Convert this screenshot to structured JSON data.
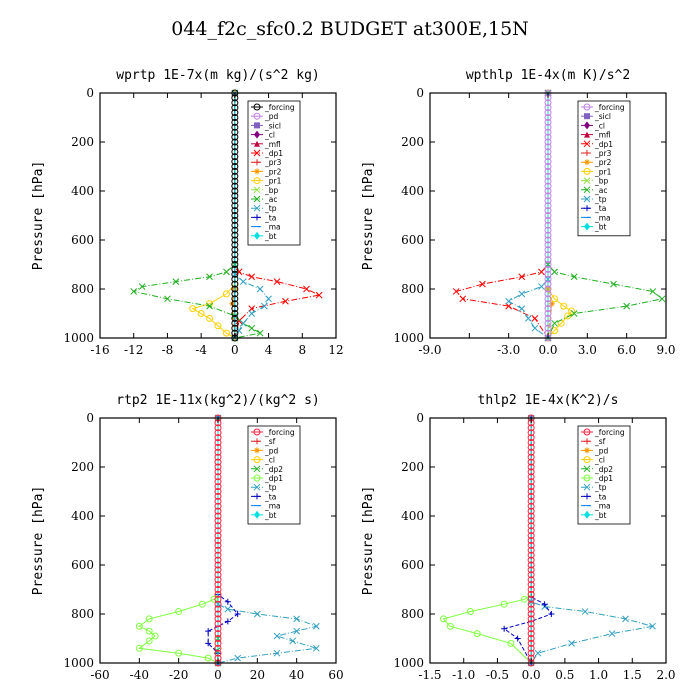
{
  "title": "044_f2c_sfc0.2  BUDGET at300E,15N",
  "chart_data": [
    {
      "type": "line",
      "title": "wprtp  1E-7x(m kg)/(s^2 kg)",
      "ylabel": "Pressure [hPa]",
      "xlim": [
        -16,
        12
      ],
      "xticks": [
        -16,
        -12,
        -8,
        -4,
        0,
        4,
        8,
        12
      ],
      "xtick_labels": [
        "-16",
        "-12",
        "-8",
        "-4",
        "0",
        "4",
        "8",
        "12"
      ],
      "ylim": [
        1000,
        0
      ],
      "yticks": [
        0,
        200,
        400,
        600,
        800,
        1000
      ],
      "ytick_labels": [
        "0",
        "200",
        "400",
        "600",
        "800",
        "1000"
      ],
      "legend_position": "top-right",
      "series": [
        {
          "name": "_forcing",
          "color": "#000000",
          "marker": "o",
          "x": [
            0,
            0
          ],
          "y": [
            0,
            1000
          ]
        },
        {
          "name": "_pd",
          "color": "#c080e0",
          "marker": "o",
          "x": [
            0,
            0
          ],
          "y": [
            0,
            1000
          ]
        },
        {
          "name": "_sicl",
          "color": "#8060c0",
          "marker": "s",
          "x": [
            0,
            0
          ],
          "y": [
            0,
            1000
          ]
        },
        {
          "name": "_cl",
          "color": "#800080",
          "marker": "d",
          "x": [
            0,
            0
          ],
          "y": [
            0,
            1000
          ]
        },
        {
          "name": "_mfl",
          "color": "#c00040",
          "marker": "^",
          "x": [
            0,
            0
          ],
          "y": [
            0,
            1000
          ]
        },
        {
          "name": "_dp1",
          "color": "#ff0000",
          "marker": "x",
          "x": [
            0,
            0,
            0.5,
            2,
            5,
            8.5,
            10,
            6,
            2,
            0.5,
            0
          ],
          "y": [
            0,
            700,
            730,
            750,
            770,
            800,
            825,
            850,
            880,
            930,
            1000
          ]
        },
        {
          "name": "_pr3",
          "color": "#e02020",
          "marker": "+",
          "x": [
            0,
            0
          ],
          "y": [
            0,
            1000
          ]
        },
        {
          "name": "_pr2",
          "color": "#ff9900",
          "marker": "*",
          "x": [
            0,
            0,
            -0.3,
            0
          ],
          "y": [
            0,
            800,
            860,
            1000
          ]
        },
        {
          "name": "_pr1",
          "color": "#ffd000",
          "marker": "o",
          "x": [
            0,
            0,
            -1,
            -3,
            -5,
            -4,
            -3,
            -2,
            -1,
            0
          ],
          "y": [
            0,
            780,
            820,
            860,
            880,
            900,
            920,
            950,
            980,
            1000
          ]
        },
        {
          "name": "_bp",
          "color": "#90e040",
          "marker": "x",
          "x": [
            0,
            0
          ],
          "y": [
            0,
            1000
          ]
        },
        {
          "name": "_ac",
          "color": "#20b020",
          "marker": "x",
          "x": [
            0,
            0,
            -1,
            -3,
            -7,
            -11,
            -12,
            -8,
            -3,
            0,
            1,
            2,
            3,
            0
          ],
          "y": [
            0,
            700,
            730,
            750,
            770,
            790,
            810,
            840,
            870,
            910,
            940,
            960,
            980,
            1000
          ]
        },
        {
          "name": "_tp",
          "color": "#30a0c0",
          "marker": "x",
          "x": [
            0,
            0,
            1,
            3,
            4,
            3.5,
            2,
            1,
            0.5,
            0
          ],
          "y": [
            0,
            740,
            770,
            800,
            840,
            870,
            900,
            940,
            970,
            1000
          ]
        },
        {
          "name": "_ta",
          "color": "#0000c0",
          "marker": "+",
          "x": [
            0,
            0
          ],
          "y": [
            0,
            1000
          ]
        },
        {
          "name": "_ma",
          "color": "#0080ff",
          "marker": "-",
          "x": [
            0,
            0
          ],
          "y": [
            0,
            1000
          ]
        },
        {
          "name": "_bt",
          "color": "#00e0e0",
          "marker": "D",
          "x": [
            0,
            0
          ],
          "y": [
            0,
            1000
          ]
        }
      ]
    },
    {
      "type": "line",
      "title": "wpthlp  1E-4x(m K)/s^2",
      "ylabel": "Pressure [hPa]",
      "xlim": [
        -9,
        9
      ],
      "xticks": [
        -9,
        -6,
        -3,
        0,
        3,
        6,
        9
      ],
      "xtick_labels": [
        "-9.0",
        "",
        "-3.0",
        "0.0",
        "3.0",
        "6.0",
        "9.0"
      ],
      "ylim": [
        1000,
        0
      ],
      "yticks": [
        0,
        200,
        400,
        600,
        800,
        1000
      ],
      "ytick_labels": [
        "0",
        "200",
        "400",
        "600",
        "800",
        "1000"
      ],
      "legend_position": "top-right",
      "series": [
        {
          "name": "_forcing",
          "color": "#c080e0",
          "marker": "o",
          "x": [
            0,
            0
          ],
          "y": [
            0,
            1000
          ]
        },
        {
          "name": "_sicl",
          "color": "#8060c0",
          "marker": "s",
          "x": [
            0,
            0
          ],
          "y": [
            0,
            1000
          ]
        },
        {
          "name": "_cl",
          "color": "#800080",
          "marker": "d",
          "x": [
            0,
            0
          ],
          "y": [
            0,
            1000
          ]
        },
        {
          "name": "_mfl",
          "color": "#c00040",
          "marker": "^",
          "x": [
            0,
            0
          ],
          "y": [
            0,
            1000
          ]
        },
        {
          "name": "_dp1",
          "color": "#ff0000",
          "marker": "x",
          "x": [
            0,
            0,
            -0.5,
            -2,
            -5,
            -7,
            -6.5,
            -3,
            -1,
            0
          ],
          "y": [
            0,
            700,
            730,
            750,
            780,
            810,
            840,
            870,
            920,
            1000
          ]
        },
        {
          "name": "_pr3",
          "color": "#e02020",
          "marker": "+",
          "x": [
            0,
            0
          ],
          "y": [
            0,
            1000
          ]
        },
        {
          "name": "_pr2",
          "color": "#ff9900",
          "marker": "*",
          "x": [
            0,
            0,
            0.3,
            0
          ],
          "y": [
            0,
            800,
            860,
            1000
          ]
        },
        {
          "name": "_pr1",
          "color": "#ffd000",
          "marker": "o",
          "x": [
            0,
            0,
            0.5,
            1.2,
            1.8,
            1.5,
            1,
            0.5,
            0
          ],
          "y": [
            0,
            800,
            840,
            870,
            890,
            910,
            940,
            970,
            1000
          ]
        },
        {
          "name": "_bp",
          "color": "#90e040",
          "marker": "x",
          "x": [
            0,
            0
          ],
          "y": [
            0,
            1000
          ]
        },
        {
          "name": "_ac",
          "color": "#20b020",
          "marker": "x",
          "x": [
            0,
            0,
            0.5,
            2,
            5,
            8,
            8.7,
            6,
            2,
            0.5,
            0
          ],
          "y": [
            0,
            700,
            730,
            750,
            780,
            810,
            840,
            870,
            900,
            940,
            1000
          ]
        },
        {
          "name": "_tp",
          "color": "#30a0c0",
          "marker": "x",
          "x": [
            0,
            0,
            -0.5,
            -2,
            -3,
            -2,
            -1.5,
            -1,
            0
          ],
          "y": [
            0,
            760,
            790,
            820,
            850,
            880,
            920,
            960,
            1000
          ]
        },
        {
          "name": "_ta",
          "color": "#0000c0",
          "marker": "+",
          "x": [
            0,
            0
          ],
          "y": [
            0,
            1000
          ]
        },
        {
          "name": "_ma",
          "color": "#0080ff",
          "marker": "-",
          "x": [
            0,
            0
          ],
          "y": [
            0,
            1000
          ]
        },
        {
          "name": "_bt",
          "color": "#00e0e0",
          "marker": "D",
          "x": [
            0,
            0
          ],
          "y": [
            0,
            1000
          ]
        }
      ]
    },
    {
      "type": "line",
      "title": "rtp2  1E-11x(kg^2)/(kg^2 s)",
      "ylabel": "Pressure [hPa]",
      "xlim": [
        -60,
        60
      ],
      "xticks": [
        -60,
        -40,
        -20,
        0,
        20,
        40,
        60
      ],
      "xtick_labels": [
        "-60",
        "-40",
        "-20",
        "0",
        "20",
        "40",
        "60"
      ],
      "ylim": [
        1000,
        0
      ],
      "yticks": [
        0,
        200,
        400,
        600,
        800,
        1000
      ],
      "ytick_labels": [
        "0",
        "200",
        "400",
        "600",
        "800",
        "1000"
      ],
      "legend_position": "top-right",
      "series": [
        {
          "name": "_forcing",
          "color": "#ff2040",
          "marker": "o",
          "x": [
            0,
            0
          ],
          "y": [
            0,
            1000
          ]
        },
        {
          "name": "_sf",
          "color": "#e02020",
          "marker": "+",
          "x": [
            0,
            0
          ],
          "y": [
            0,
            1000
          ]
        },
        {
          "name": "_pd",
          "color": "#ff9900",
          "marker": "*",
          "x": [
            0,
            0
          ],
          "y": [
            0,
            1000
          ]
        },
        {
          "name": "_cl",
          "color": "#ffd000",
          "marker": "o",
          "x": [
            0,
            0
          ],
          "y": [
            0,
            1000
          ]
        },
        {
          "name": "_dp2",
          "color": "#20b020",
          "marker": "x",
          "x": [
            0,
            0,
            -0.5,
            0
          ],
          "y": [
            0,
            900,
            950,
            1000
          ]
        },
        {
          "name": "_dp1",
          "color": "#80ff40",
          "marker": "o",
          "x": [
            0,
            0,
            -2,
            -8,
            -20,
            -35,
            -40,
            -35,
            -32,
            -35,
            -40,
            -20,
            -5,
            0
          ],
          "y": [
            0,
            720,
            740,
            760,
            790,
            820,
            850,
            870,
            890,
            910,
            940,
            960,
            980,
            1000
          ]
        },
        {
          "name": "_tp",
          "color": "#30a0c0",
          "marker": "x",
          "x": [
            0,
            0,
            5,
            20,
            40,
            50,
            40,
            30,
            38,
            50,
            30,
            10,
            0
          ],
          "y": [
            0,
            760,
            780,
            800,
            820,
            850,
            870,
            890,
            910,
            940,
            960,
            980,
            1000
          ]
        },
        {
          "name": "_ta",
          "color": "#0000c0",
          "marker": "+",
          "x": [
            0,
            0,
            5,
            10,
            5,
            0,
            -5,
            -5,
            0,
            0
          ],
          "y": [
            0,
            720,
            750,
            800,
            830,
            850,
            870,
            920,
            960,
            1000
          ]
        },
        {
          "name": "_ma",
          "color": "#0080ff",
          "marker": "-",
          "x": [
            0,
            0
          ],
          "y": [
            0,
            1000
          ]
        },
        {
          "name": "_bt",
          "color": "#00e0e0",
          "marker": "D",
          "x": [
            0,
            0
          ],
          "y": [
            0,
            1000
          ]
        }
      ]
    },
    {
      "type": "line",
      "title": "thlp2  1E-4x(K^2)/s",
      "ylabel": "Pressure [hPa]",
      "xlim": [
        -1.5,
        2.0
      ],
      "xticks": [
        -1.5,
        -1.0,
        -0.5,
        0.0,
        0.5,
        1.0,
        1.5,
        2.0
      ],
      "xtick_labels": [
        "-1.5",
        "-1.0",
        "-0.5",
        "0.0",
        "0.5",
        "1.0",
        "1.5",
        "2.0"
      ],
      "ylim": [
        1000,
        0
      ],
      "yticks": [
        0,
        200,
        400,
        600,
        800,
        1000
      ],
      "ytick_labels": [
        "0",
        "200",
        "400",
        "600",
        "800",
        "1000"
      ],
      "legend_position": "top-right",
      "series": [
        {
          "name": "_forcing",
          "color": "#ff2040",
          "marker": "o",
          "x": [
            0,
            0
          ],
          "y": [
            0,
            1000
          ]
        },
        {
          "name": "_sf",
          "color": "#e02020",
          "marker": "+",
          "x": [
            0,
            0
          ],
          "y": [
            0,
            1000
          ]
        },
        {
          "name": "_pd",
          "color": "#ff9900",
          "marker": "*",
          "x": [
            0,
            0
          ],
          "y": [
            0,
            1000
          ]
        },
        {
          "name": "_cl",
          "color": "#ffd000",
          "marker": "o",
          "x": [
            0,
            0
          ],
          "y": [
            0,
            1000
          ]
        },
        {
          "name": "_dp2",
          "color": "#20b020",
          "marker": "x",
          "x": [
            0,
            0
          ],
          "y": [
            0,
            1000
          ]
        },
        {
          "name": "_dp1",
          "color": "#80ff40",
          "marker": "o",
          "x": [
            0,
            0,
            -0.1,
            -0.4,
            -0.9,
            -1.3,
            -1.2,
            -0.8,
            -0.3,
            0
          ],
          "y": [
            0,
            720,
            740,
            760,
            790,
            820,
            850,
            880,
            920,
            1000
          ]
        },
        {
          "name": "_tp",
          "color": "#30a0c0",
          "marker": "x",
          "x": [
            0,
            0,
            0.2,
            0.8,
            1.4,
            1.8,
            1.2,
            0.6,
            0.1,
            0
          ],
          "y": [
            0,
            750,
            770,
            790,
            820,
            850,
            880,
            920,
            960,
            1000
          ]
        },
        {
          "name": "_ta",
          "color": "#0000c0",
          "marker": "+",
          "x": [
            0,
            0,
            0.2,
            0.3,
            0,
            -0.4,
            -0.2,
            0
          ],
          "y": [
            0,
            730,
            760,
            800,
            830,
            860,
            900,
            1000
          ]
        },
        {
          "name": "_ma",
          "color": "#0080ff",
          "marker": "-",
          "x": [
            0,
            0
          ],
          "y": [
            0,
            1000
          ]
        },
        {
          "name": "_bt",
          "color": "#00e0e0",
          "marker": "D",
          "x": [
            0,
            0
          ],
          "y": [
            0,
            1000
          ]
        }
      ]
    }
  ]
}
